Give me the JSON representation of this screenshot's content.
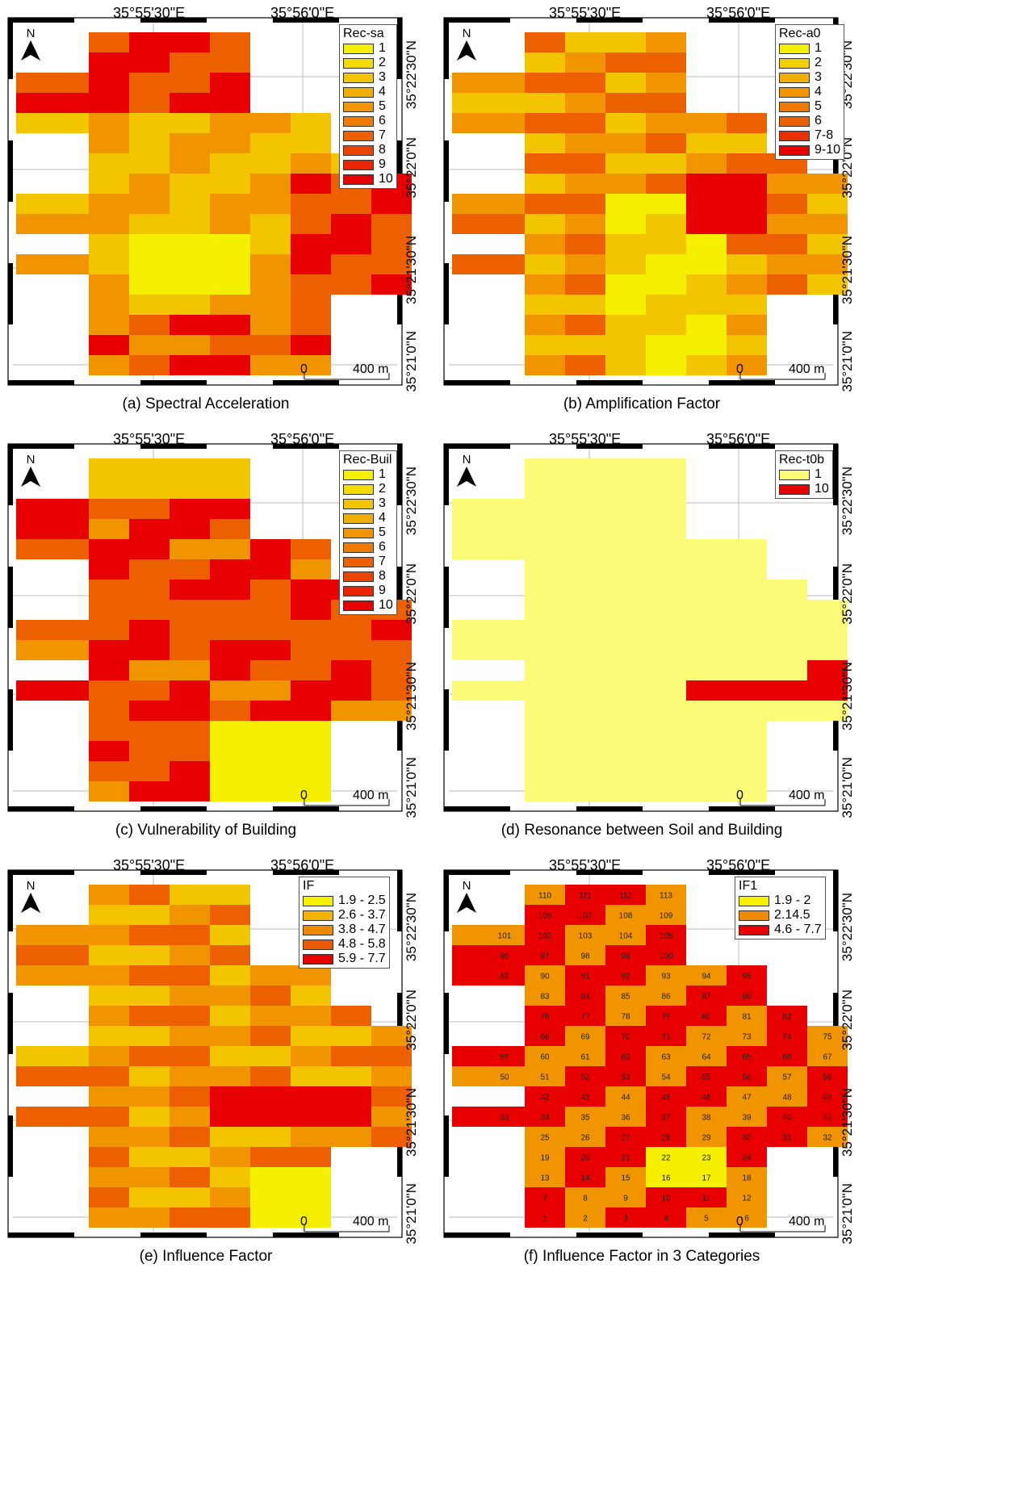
{
  "coords": {
    "lon": [
      "35°55'30\"E",
      "35°56'0\"E"
    ],
    "lat": [
      "35°22'30\"N",
      "35°22'0\"N",
      "35°21'30\"N",
      "35°21'0\"N"
    ]
  },
  "north_label": "N",
  "scale": {
    "zero": "0",
    "dist": "400 m"
  },
  "panels": [
    {
      "id": "a",
      "caption": "(a) Spectral Acceleration",
      "legend_title": "Rec-sa",
      "legend": [
        {
          "label": "1",
          "color": "#f5f000"
        },
        {
          "label": "2",
          "color": "#f5dc00"
        },
        {
          "label": "3",
          "color": "#f3c500"
        },
        {
          "label": "4",
          "color": "#f1ad00"
        },
        {
          "label": "5",
          "color": "#f09400"
        },
        {
          "label": "6",
          "color": "#ee7b00"
        },
        {
          "label": "7",
          "color": "#ec6000"
        },
        {
          "label": "8",
          "color": "#eb4400"
        },
        {
          "label": "9",
          "color": "#e92400"
        },
        {
          "label": "10",
          "color": "#e80000"
        }
      ]
    },
    {
      "id": "b",
      "caption": "(b) Amplification Factor",
      "legend_title": "Rec-a0",
      "legend": [
        {
          "label": "1",
          "color": "#f5f000"
        },
        {
          "label": "2",
          "color": "#f3cf00"
        },
        {
          "label": "3",
          "color": "#f1b000"
        },
        {
          "label": "4",
          "color": "#f09400"
        },
        {
          "label": "5",
          "color": "#ee7b00"
        },
        {
          "label": "6",
          "color": "#ec6000"
        },
        {
          "label": "7-8",
          "color": "#ea3000"
        },
        {
          "label": "9-10",
          "color": "#e80000"
        }
      ]
    },
    {
      "id": "c",
      "caption": "(c) Vulnerability of Building",
      "legend_title": "Rec-Buil",
      "legend": [
        {
          "label": "1",
          "color": "#f5f000"
        },
        {
          "label": "2",
          "color": "#f5dc00"
        },
        {
          "label": "3",
          "color": "#f3c500"
        },
        {
          "label": "4",
          "color": "#f1ad00"
        },
        {
          "label": "5",
          "color": "#f09400"
        },
        {
          "label": "6",
          "color": "#ee7b00"
        },
        {
          "label": "7",
          "color": "#ec6000"
        },
        {
          "label": "8",
          "color": "#eb4400"
        },
        {
          "label": "9",
          "color": "#e92400"
        },
        {
          "label": "10",
          "color": "#e80000"
        }
      ]
    },
    {
      "id": "d",
      "caption": "(d) Resonance between Soil and Building",
      "legend_title": "Rec-t0b",
      "legend": [
        {
          "label": "1",
          "color": "#fbfb78"
        },
        {
          "label": "10",
          "color": "#e80000"
        }
      ]
    },
    {
      "id": "e",
      "caption": "(e) Influence Factor",
      "legend_title": "IF",
      "legend": [
        {
          "label": "1.9 - 2.5",
          "color": "#f5f000"
        },
        {
          "label": "2.6 - 3.7",
          "color": "#f2b400"
        },
        {
          "label": "3.8 - 4.7",
          "color": "#ee8a00"
        },
        {
          "label": "4.8 - 5.8",
          "color": "#eb5a00"
        },
        {
          "label": "5.9 - 7.7",
          "color": "#e80000"
        }
      ]
    },
    {
      "id": "f",
      "caption": "(f) Influence Factor in 3 Categories",
      "legend_title": "IF1",
      "legend": [
        {
          "label": "1.9 - 2",
          "color": "#f5f000"
        },
        {
          "label": "2.14.5",
          "color": "#ee8a00"
        },
        {
          "label": "4.6 - 7.7",
          "color": "#e80000"
        }
      ],
      "cell_numbers": [
        "1",
        "2",
        "3",
        "4",
        "5",
        "6",
        "7",
        "8",
        "9",
        "10",
        "11",
        "12",
        "13",
        "14",
        "15",
        "16",
        "17",
        "18",
        "19",
        "20",
        "21",
        "22",
        "23",
        "24",
        "25",
        "26",
        "27",
        "28",
        "29",
        "30",
        "31",
        "32",
        "33",
        "34",
        "35",
        "36",
        "37",
        "38",
        "39",
        "40",
        "41",
        "42",
        "43",
        "44",
        "45",
        "46",
        "47",
        "48",
        "49",
        "50",
        "51",
        "52",
        "53",
        "54",
        "55",
        "56",
        "57",
        "58",
        "59",
        "60",
        "61",
        "62",
        "63",
        "64",
        "65",
        "66",
        "67",
        "68",
        "69",
        "70",
        "71",
        "72",
        "73",
        "74",
        "75",
        "76",
        "77",
        "78",
        "79",
        "80",
        "81",
        "82",
        "83",
        "84",
        "85",
        "86",
        "87",
        "88",
        "89",
        "90",
        "91",
        "92",
        "93",
        "94",
        "95",
        "96",
        "97",
        "98",
        "99",
        "100",
        "101",
        "102",
        "103",
        "104",
        "105",
        "106",
        "107",
        "108",
        "109",
        "110",
        "111",
        "112",
        "113"
      ]
    }
  ]
}
